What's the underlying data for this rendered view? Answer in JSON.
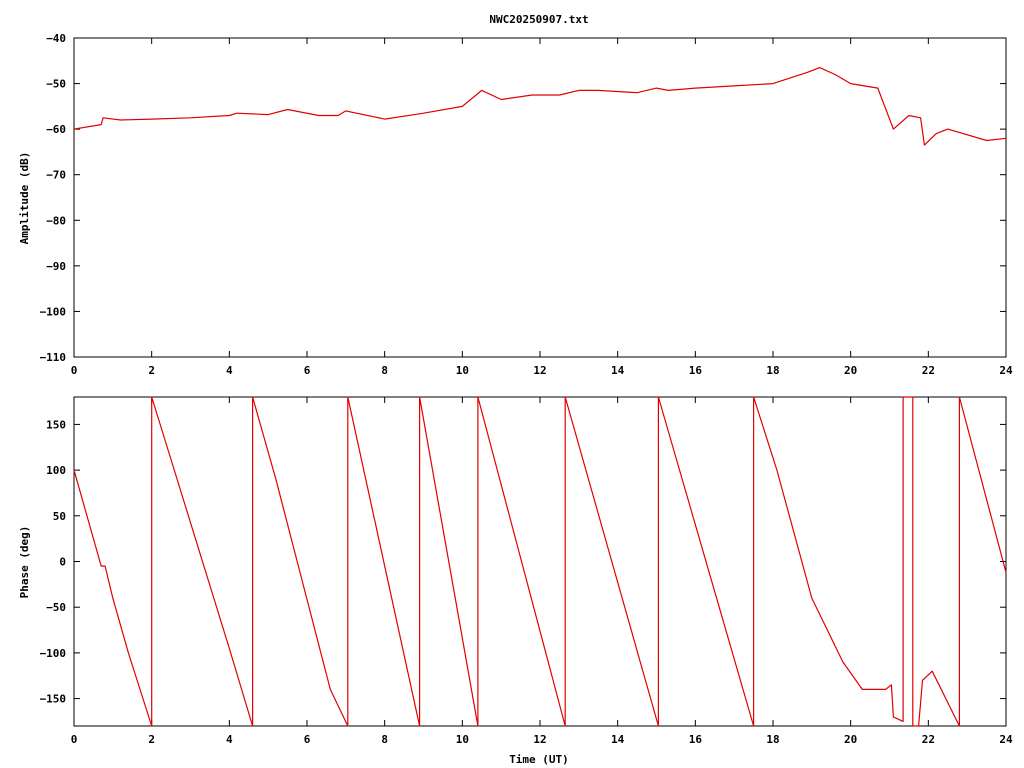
{
  "chart_data": [
    {
      "type": "line",
      "title": "NWC20250907.txt",
      "xlabel": "",
      "ylabel": "Amplitude (dB)",
      "xlim": [
        0,
        24
      ],
      "ylim": [
        -110,
        -40
      ],
      "xticks": [
        0,
        2,
        4,
        6,
        8,
        10,
        12,
        14,
        16,
        18,
        20,
        22,
        24
      ],
      "yticks": [
        -40,
        -50,
        -60,
        -70,
        -80,
        -90,
        -100,
        -110
      ],
      "grid": false,
      "color": "#e00000",
      "series": [
        {
          "x": [
            0,
            0.7,
            0.75,
            1.2,
            2,
            3,
            4,
            4.2,
            5,
            5.5,
            6.3,
            6.8,
            7,
            8,
            9,
            10,
            10.5,
            11,
            11.8,
            12.5,
            13,
            13.5,
            14.5,
            15,
            15.3,
            16,
            17,
            18,
            18.9,
            19.2,
            19.6,
            20,
            20.7,
            21.1,
            21.5,
            21.8,
            21.9,
            22.2,
            22.5,
            23.5,
            24
          ],
          "y": [
            -60,
            -59,
            -57.5,
            -58,
            -57.8,
            -57.5,
            -57,
            -56.5,
            -56.8,
            -55.7,
            -57,
            -57,
            -56,
            -57.8,
            -56.5,
            -55,
            -51.5,
            -53.5,
            -52.5,
            -52.5,
            -51.5,
            -51.5,
            -52,
            -51,
            -51.5,
            -51,
            -50.5,
            -50,
            -47.5,
            -46.5,
            -48,
            -50,
            -51,
            -60,
            -57,
            -57.5,
            -63.5,
            -61,
            -60,
            -62.5,
            -62
          ]
        }
      ]
    },
    {
      "type": "line",
      "title": "",
      "xlabel": "Time (UT)",
      "ylabel": "Phase (deg)",
      "xlim": [
        0,
        24
      ],
      "ylim": [
        -180,
        180
      ],
      "xticks": [
        0,
        2,
        4,
        6,
        8,
        10,
        12,
        14,
        16,
        18,
        20,
        22,
        24
      ],
      "yticks": [
        150,
        100,
        50,
        0,
        -50,
        -100,
        -150
      ],
      "grid": false,
      "color": "#e00000",
      "series": [
        {
          "x": [
            0,
            0.7,
            0.8,
            1.0,
            1.4,
            2.0,
            2.0,
            4.0,
            4.6,
            4.6,
            5.2,
            6.6,
            7.05,
            7.05,
            8.9,
            8.9,
            10.4,
            10.4,
            12.65,
            12.65,
            15.05,
            15.05,
            17.5,
            17.5,
            18.1,
            19.0,
            19.8,
            20.3,
            20.9,
            21.05,
            21.1,
            21.35,
            21.35,
            21.6,
            21.6,
            21.75,
            21.85,
            22.1,
            22.8,
            22.8,
            24.0
          ],
          "y": [
            100,
            -5,
            -5,
            -40,
            -100,
            -180,
            180,
            -95,
            -180,
            180,
            90,
            -140,
            -180,
            180,
            -180,
            180,
            -180,
            180,
            -180,
            180,
            -180,
            180,
            -180,
            180,
            100,
            -40,
            -110,
            -140,
            -140,
            -135,
            -170,
            -175,
            180,
            180,
            -180,
            -180,
            -130,
            -120,
            -180,
            180,
            -12
          ]
        }
      ]
    }
  ]
}
